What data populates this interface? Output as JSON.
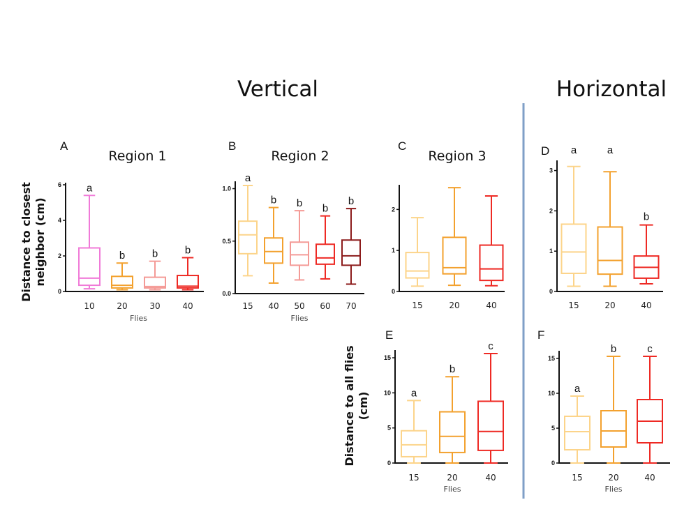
{
  "titles": {
    "vertical": "Vertical",
    "horizontal": "Horizontal"
  },
  "divider_color": "#7f9fc7",
  "chart_data": [
    {
      "id": "A",
      "type": "box",
      "letter": "A",
      "title": "Region 1",
      "xlabel": "Flies",
      "ylabel": "Distance to closest neighbor (cm)",
      "ylim": [
        0,
        6
      ],
      "yticks": [
        0,
        2,
        4,
        6
      ],
      "categories": [
        "10",
        "20",
        "30",
        "40"
      ],
      "colors": [
        "#f07ad8",
        "#f3a12e",
        "#f49a96",
        "#ee2a24"
      ],
      "boxes": [
        {
          "min": 0.15,
          "q1": 0.35,
          "median": 0.75,
          "q3": 2.45,
          "max": 5.4
        },
        {
          "min": 0.1,
          "q1": 0.2,
          "median": 0.35,
          "q3": 0.85,
          "max": 1.6
        },
        {
          "min": 0.1,
          "q1": 0.2,
          "median": 0.28,
          "q3": 0.8,
          "max": 1.7
        },
        {
          "min": 0.1,
          "q1": 0.2,
          "median": 0.3,
          "q3": 0.9,
          "max": 1.9
        }
      ],
      "sig_letters": [
        "a",
        "b",
        "b",
        "b"
      ]
    },
    {
      "id": "B",
      "type": "box",
      "letter": "B",
      "title": "Region 2",
      "xlabel": "Flies",
      "ylabel": "",
      "ylim": [
        0,
        1.05
      ],
      "yticks": [
        0.0,
        0.5,
        1.0
      ],
      "ytick_labels": [
        "0.0",
        "0.5",
        "1.0"
      ],
      "categories": [
        "15",
        "40",
        "50",
        "60",
        "70"
      ],
      "colors": [
        "#fcd48a",
        "#f3a12e",
        "#f49a96",
        "#ee2a24",
        "#8c1b1b"
      ],
      "boxes": [
        {
          "min": 0.17,
          "q1": 0.38,
          "median": 0.56,
          "q3": 0.69,
          "max": 1.03
        },
        {
          "min": 0.1,
          "q1": 0.29,
          "median": 0.4,
          "q3": 0.53,
          "max": 0.82
        },
        {
          "min": 0.13,
          "q1": 0.27,
          "median": 0.37,
          "q3": 0.49,
          "max": 0.79
        },
        {
          "min": 0.14,
          "q1": 0.28,
          "median": 0.34,
          "q3": 0.47,
          "max": 0.74
        },
        {
          "min": 0.09,
          "q1": 0.27,
          "median": 0.36,
          "q3": 0.51,
          "max": 0.81
        }
      ],
      "sig_letters": [
        "a",
        "b",
        "b",
        "b",
        "b"
      ]
    },
    {
      "id": "C",
      "type": "box",
      "letter": "C",
      "title": "Region 3",
      "xlabel": "",
      "ylabel": "",
      "ylim": [
        0,
        2.55
      ],
      "yticks": [
        0,
        1,
        2
      ],
      "categories": [
        "15",
        "20",
        "40"
      ],
      "colors": [
        "#fcd48a",
        "#f3a12e",
        "#ee2a24"
      ],
      "boxes": [
        {
          "min": 0.13,
          "q1": 0.33,
          "median": 0.5,
          "q3": 0.95,
          "max": 1.8
        },
        {
          "min": 0.15,
          "q1": 0.43,
          "median": 0.58,
          "q3": 1.32,
          "max": 2.53
        },
        {
          "min": 0.14,
          "q1": 0.27,
          "median": 0.55,
          "q3": 1.13,
          "max": 2.33
        }
      ],
      "sig_letters": []
    },
    {
      "id": "D",
      "type": "box",
      "letter": "D",
      "title": "",
      "xlabel": "",
      "ylabel": "",
      "ylim": [
        0,
        3.2
      ],
      "yticks": [
        0,
        1,
        2,
        3
      ],
      "categories": [
        "15",
        "20",
        "40"
      ],
      "colors": [
        "#fcd48a",
        "#f3a12e",
        "#ee2a24"
      ],
      "boxes": [
        {
          "min": 0.13,
          "q1": 0.45,
          "median": 0.98,
          "q3": 1.67,
          "max": 3.1
        },
        {
          "min": 0.13,
          "q1": 0.43,
          "median": 0.77,
          "q3": 1.6,
          "max": 2.97
        },
        {
          "min": 0.19,
          "q1": 0.33,
          "median": 0.6,
          "q3": 0.88,
          "max": 1.65
        }
      ],
      "sig_letters": [
        "a",
        "a",
        "b"
      ]
    },
    {
      "id": "E",
      "type": "box",
      "letter": "E",
      "title": "",
      "xlabel": "Flies",
      "ylabel": "Distance to all flies (cm)",
      "ylim": [
        0,
        15.8
      ],
      "yticks": [
        0,
        5,
        10,
        15
      ],
      "categories": [
        "15",
        "20",
        "40"
      ],
      "colors": [
        "#fcd48a",
        "#f3a12e",
        "#ee2a24"
      ],
      "boxes": [
        {
          "min": 0.0,
          "q1": 0.9,
          "median": 2.6,
          "q3": 4.6,
          "max": 8.9
        },
        {
          "min": 0.0,
          "q1": 1.5,
          "median": 3.8,
          "q3": 7.3,
          "max": 12.3
        },
        {
          "min": 0.0,
          "q1": 1.8,
          "median": 4.5,
          "q3": 8.8,
          "max": 15.6
        }
      ],
      "sig_letters": [
        "a",
        "b",
        "c"
      ]
    },
    {
      "id": "F",
      "type": "box",
      "letter": "F",
      "title": "",
      "xlabel": "Flies",
      "ylabel": "",
      "ylim": [
        0,
        15.8
      ],
      "yticks": [
        0,
        5,
        10,
        15
      ],
      "categories": [
        "15",
        "20",
        "40"
      ],
      "colors": [
        "#fcd48a",
        "#f3a12e",
        "#ee2a24"
      ],
      "boxes": [
        {
          "min": 0.0,
          "q1": 1.9,
          "median": 4.5,
          "q3": 6.7,
          "max": 9.6
        },
        {
          "min": 0.0,
          "q1": 2.3,
          "median": 4.6,
          "q3": 7.5,
          "max": 15.3
        },
        {
          "min": 0.0,
          "q1": 2.9,
          "median": 6.0,
          "q3": 9.1,
          "max": 15.3
        }
      ],
      "sig_letters": [
        "a",
        "b",
        "c"
      ]
    }
  ]
}
